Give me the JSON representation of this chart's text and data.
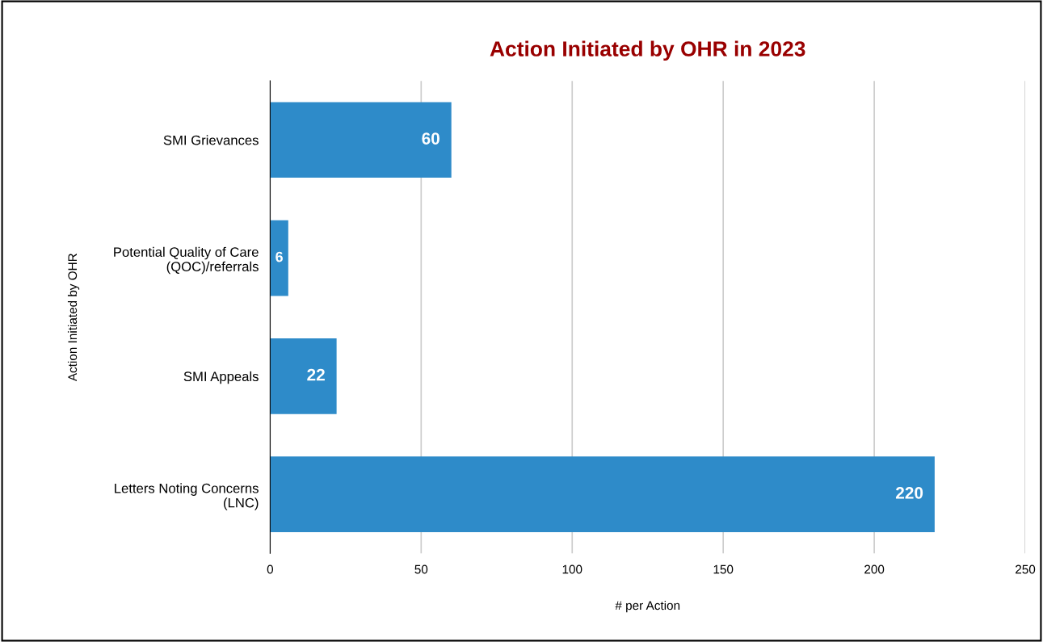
{
  "chart_data": {
    "type": "bar",
    "orientation": "horizontal",
    "title": "Action Initiated by OHR in 2023",
    "xlabel": "# per Action",
    "ylabel": "Action Initiated by OHR",
    "categories": [
      "SMI Grievances",
      "Potential Quality of Care\n(QOC)/referrals",
      "SMI Appeals",
      "Letters Noting Concerns\n(LNC)"
    ],
    "values": [
      60,
      6,
      22,
      220
    ],
    "color": "#2e8bc9",
    "data_labels": true,
    "xlim": [
      0,
      250
    ],
    "xticks": [
      0,
      50,
      100,
      150,
      200,
      250
    ],
    "grid": "x"
  }
}
